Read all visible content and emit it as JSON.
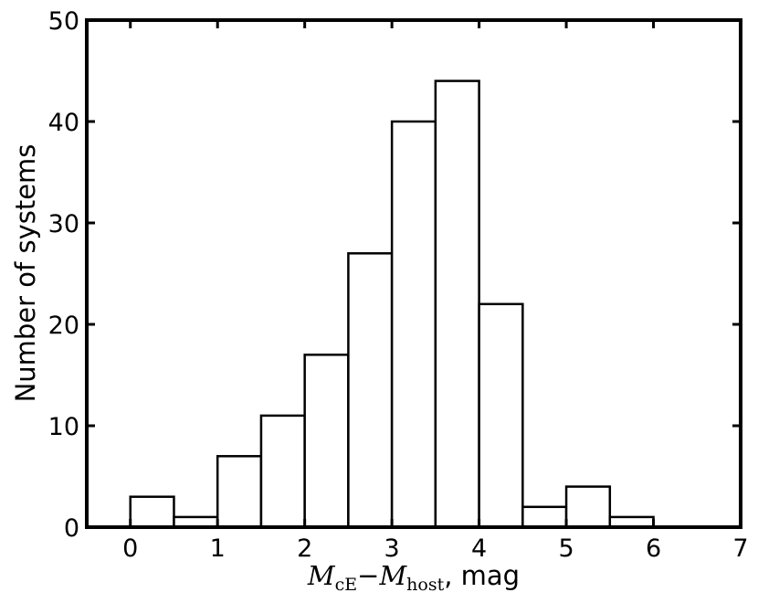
{
  "chart_data": {
    "type": "bar",
    "bins": [
      {
        "x0": 0.0,
        "x1": 0.5,
        "value": 3
      },
      {
        "x0": 0.5,
        "x1": 1.0,
        "value": 1
      },
      {
        "x0": 1.0,
        "x1": 1.5,
        "value": 7
      },
      {
        "x0": 1.5,
        "x1": 2.0,
        "value": 11
      },
      {
        "x0": 2.0,
        "x1": 2.5,
        "value": 17
      },
      {
        "x0": 2.5,
        "x1": 3.0,
        "value": 27
      },
      {
        "x0": 3.0,
        "x1": 3.5,
        "value": 40
      },
      {
        "x0": 3.5,
        "x1": 4.0,
        "value": 44
      },
      {
        "x0": 4.0,
        "x1": 4.5,
        "value": 22
      },
      {
        "x0": 4.5,
        "x1": 5.0,
        "value": 2
      },
      {
        "x0": 5.0,
        "x1": 5.5,
        "value": 4
      },
      {
        "x0": 5.5,
        "x1": 6.0,
        "value": 1
      }
    ],
    "xlim": [
      -0.5,
      7
    ],
    "ylim": [
      0,
      50
    ],
    "xticks": [
      0,
      1,
      2,
      3,
      4,
      5,
      6,
      7
    ],
    "yticks": [
      0,
      10,
      20,
      30,
      40,
      50
    ],
    "xlabel": {
      "var1": "M",
      "sub1": "cE",
      "minus": "−",
      "var2": "M",
      "sub2": "host",
      "unit": ", mag"
    },
    "ylabel": "Number of systems",
    "grid": false,
    "bar_fill": "#ffffff",
    "bar_stroke": "#000000"
  }
}
